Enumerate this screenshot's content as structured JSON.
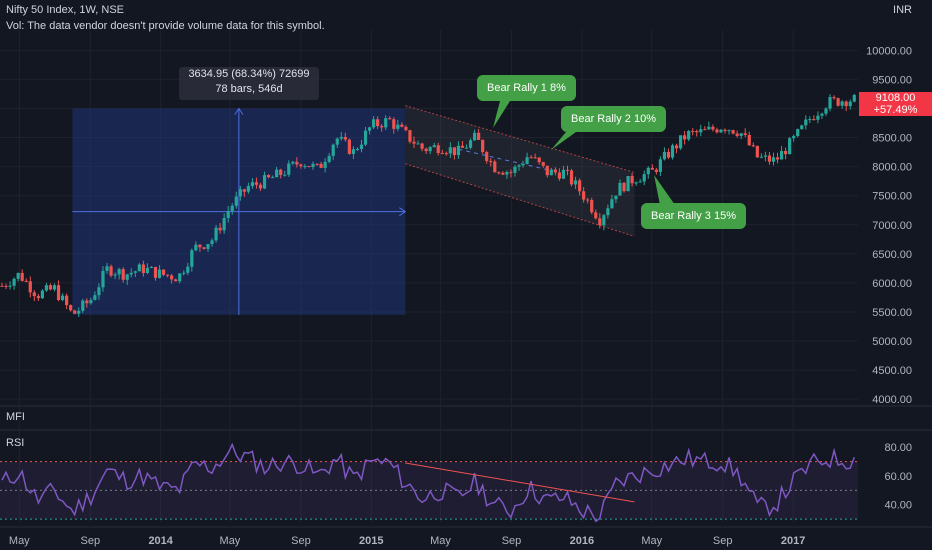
{
  "header": {
    "title": "Nifty 50 Index, 1W, NSE",
    "vol_notice": "Vol: The data vendor doesn't provide volume data for this symbol."
  },
  "currency": "INR",
  "last_price": {
    "value": "9108.00",
    "change": "+57.49%"
  },
  "measure": {
    "line1": "3634.95 (68.34%) 72699",
    "line2": "78 bars, 546d"
  },
  "callouts": [
    {
      "id": "c1",
      "label": "Bear Rally 1 8%"
    },
    {
      "id": "c2",
      "label": "Bear Rally 2 10%"
    },
    {
      "id": "c3",
      "label": "Bear Rally 3 15%"
    }
  ],
  "panes": {
    "mfi": "MFI",
    "rsi": "RSI"
  },
  "colors": {
    "background": "#131722",
    "up": "#26a69a",
    "down": "#ef5350",
    "rsi_line": "#7e57c2",
    "measure_fill": "#1e3a8a",
    "callout": "#43a047",
    "price_tag": "#f23645"
  },
  "chart_data": {
    "type": "candlestick",
    "symbol": "Nifty 50 Index",
    "interval": "1W",
    "exchange": "NSE",
    "y_axis": {
      "ticks": [
        10000,
        9500,
        9000,
        8500,
        8000,
        7500,
        7000,
        6500,
        6000,
        5500,
        5000,
        4500,
        4000
      ],
      "tick_labels": [
        "10000.00",
        "9500.00",
        "9000.00",
        "8500.00",
        "8000.00",
        "7500.00",
        "7000.00",
        "6500.00",
        "6000.00",
        "5500.00",
        "5000.00",
        "4500.00",
        "4000.00"
      ],
      "range": [
        3900,
        10350
      ]
    },
    "x_axis": {
      "labels": [
        "May",
        "Sep",
        "2014",
        "May",
        "Sep",
        "2015",
        "May",
        "Sep",
        "2016",
        "May",
        "Sep",
        "2017"
      ],
      "dates": [
        "2013-05",
        "2013-09",
        "2014-01",
        "2014-05",
        "2014-09",
        "2015-01",
        "2015-05",
        "2015-09",
        "2016-01",
        "2016-05",
        "2016-09",
        "2017-01"
      ],
      "bold": [
        false,
        false,
        true,
        false,
        false,
        true,
        false,
        false,
        true,
        false,
        false,
        true
      ]
    },
    "price_path": [
      [
        "2013-04",
        5950
      ],
      [
        "2013-05",
        6150
      ],
      [
        "2013-06",
        5800
      ],
      [
        "2013-07",
        5900
      ],
      [
        "2013-08",
        5450
      ],
      [
        "2013-09",
        5700
      ],
      [
        "2013-10",
        6250
      ],
      [
        "2013-11",
        6150
      ],
      [
        "2013-12",
        6250
      ],
      [
        "2014-01",
        6150
      ],
      [
        "2014-02",
        6100
      ],
      [
        "2014-03",
        6600
      ],
      [
        "2014-04",
        6750
      ],
      [
        "2014-05",
        7300
      ],
      [
        "2014-06",
        7650
      ],
      [
        "2014-07",
        7750
      ],
      [
        "2014-08",
        7900
      ],
      [
        "2014-09",
        8100
      ],
      [
        "2014-10",
        7950
      ],
      [
        "2014-11",
        8500
      ],
      [
        "2014-12",
        8250
      ],
      [
        "2015-01",
        8700
      ],
      [
        "2015-02",
        8800
      ],
      [
        "2015-03",
        8550
      ],
      [
        "2015-04",
        8300
      ],
      [
        "2015-05",
        8350
      ],
      [
        "2015-06",
        8250
      ],
      [
        "2015-07",
        8500
      ],
      [
        "2015-08",
        8000
      ],
      [
        "2015-09",
        7900
      ],
      [
        "2015-10",
        8200
      ],
      [
        "2015-11",
        7900
      ],
      [
        "2015-12",
        7900
      ],
      [
        "2016-01",
        7550
      ],
      [
        "2016-02",
        7100
      ],
      [
        "2016-03",
        7600
      ],
      [
        "2016-04",
        7800
      ],
      [
        "2016-05",
        7900
      ],
      [
        "2016-06",
        8250
      ],
      [
        "2016-07",
        8550
      ],
      [
        "2016-08",
        8600
      ],
      [
        "2016-09",
        8700
      ],
      [
        "2016-10",
        8600
      ],
      [
        "2016-11",
        8150
      ],
      [
        "2016-12",
        8100
      ],
      [
        "2017-01",
        8450
      ],
      [
        "2017-02",
        8850
      ],
      [
        "2017-03",
        9100
      ],
      [
        "2017-04",
        9150
      ]
    ],
    "rsi": {
      "levels": [
        80,
        60,
        40
      ],
      "tick_labels": [
        "80.00",
        "60.00",
        "40.00"
      ],
      "band": [
        70,
        30
      ],
      "range": [
        28,
        85
      ],
      "path": [
        [
          "2013-04",
          55
        ],
        [
          "2013-05",
          63
        ],
        [
          "2013-06",
          43
        ],
        [
          "2013-07",
          50
        ],
        [
          "2013-08",
          35
        ],
        [
          "2013-09",
          46
        ],
        [
          "2013-10",
          64
        ],
        [
          "2013-11",
          57
        ],
        [
          "2013-12",
          60
        ],
        [
          "2014-01",
          52
        ],
        [
          "2014-02",
          50
        ],
        [
          "2014-03",
          68
        ],
        [
          "2014-04",
          66
        ],
        [
          "2014-05",
          77
        ],
        [
          "2014-06",
          73
        ],
        [
          "2014-07",
          66
        ],
        [
          "2014-08",
          70
        ],
        [
          "2014-09",
          68
        ],
        [
          "2014-10",
          60
        ],
        [
          "2014-11",
          72
        ],
        [
          "2014-12",
          58
        ],
        [
          "2015-01",
          70
        ],
        [
          "2015-02",
          69
        ],
        [
          "2015-03",
          55
        ],
        [
          "2015-04",
          44
        ],
        [
          "2015-05",
          50
        ],
        [
          "2015-06",
          45
        ],
        [
          "2015-07",
          56
        ],
        [
          "2015-08",
          40
        ],
        [
          "2015-09",
          36
        ],
        [
          "2015-10",
          52
        ],
        [
          "2015-11",
          43
        ],
        [
          "2015-12",
          45
        ],
        [
          "2016-01",
          36
        ],
        [
          "2016-02",
          32
        ],
        [
          "2016-03",
          55
        ],
        [
          "2016-04",
          60
        ],
        [
          "2016-05",
          64
        ],
        [
          "2016-06",
          68
        ],
        [
          "2016-07",
          72
        ],
        [
          "2016-08",
          70
        ],
        [
          "2016-09",
          70
        ],
        [
          "2016-10",
          60
        ],
        [
          "2016-11",
          38
        ],
        [
          "2016-12",
          40
        ],
        [
          "2017-01",
          56
        ],
        [
          "2017-02",
          68
        ],
        [
          "2017-03",
          72
        ],
        [
          "2017-04",
          71
        ]
      ],
      "trendline": [
        [
          "2015-03",
          69
        ],
        [
          "2016-04",
          42
        ]
      ]
    },
    "annotations": {
      "measure_range": {
        "from_date": "2013-08",
        "to_date": "2015-03",
        "from_price": 5450,
        "to_price": 9000
      },
      "channel_upper": [
        [
          "2015-03",
          9050
        ],
        [
          "2016-04",
          7900
        ]
      ],
      "channel_lower": [
        [
          "2015-03",
          8050
        ],
        [
          "2016-04",
          6800
        ]
      ],
      "dashed_midline": [
        [
          "2015-06",
          8300
        ],
        [
          "2015-11",
          7950
        ]
      ]
    }
  }
}
